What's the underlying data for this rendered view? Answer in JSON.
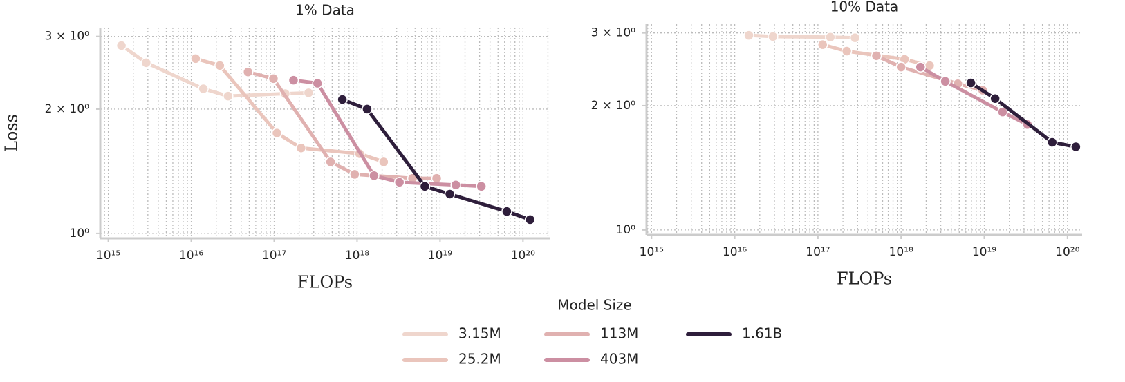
{
  "chart_data": [
    {
      "type": "line",
      "title": "1% Data",
      "xlabel": "FLOPs",
      "ylabel": "Loss",
      "xlog": true,
      "ylog": true,
      "grid": true,
      "minor_grid": true,
      "xlim": [
        800000000000000.0,
        2.1e+20
      ],
      "ylim": [
        0.973,
        3.15
      ],
      "xticks": [
        {
          "value": 1000000000000000.0,
          "label": "10¹⁵"
        },
        {
          "value": 1e+16,
          "label": "10¹⁶"
        },
        {
          "value": 1e+17,
          "label": "10¹⁷"
        },
        {
          "value": 1e+18,
          "label": "10¹⁸"
        },
        {
          "value": 1e+19,
          "label": "10¹⁹"
        },
        {
          "value": 1e+20,
          "label": "10²⁰"
        }
      ],
      "yticks": [
        {
          "value": 1,
          "label": "10⁰"
        },
        {
          "value": 2,
          "label": "2 × 10⁰"
        },
        {
          "value": 3,
          "label": "3 × 10⁰"
        }
      ],
      "series": [
        {
          "name": "3.15M",
          "color": "#efd6cd",
          "x": [
            1440000000000000.0,
            2860000000000000.0,
            1.4e+16,
            2.78e+16,
            1.36e+17,
            2.6e+17
          ],
          "values": [
            2.85,
            2.59,
            2.24,
            2.15,
            2.18,
            2.19
          ]
        },
        {
          "name": "25.2M",
          "color": "#eac5bc",
          "x": [
            1.13e+16,
            2.21e+16,
            1.08e+17,
            2.11e+17,
            1.07e+18,
            2.09e+18
          ],
          "values": [
            2.65,
            2.55,
            1.75,
            1.61,
            1.56,
            1.49
          ]
        },
        {
          "name": "113M",
          "color": "#e0b1b0",
          "x": [
            4.84e+16,
            9.8e+16,
            4.79e+17,
            9.35e+17,
            4.66e+18,
            9.1e+18
          ],
          "values": [
            2.46,
            2.37,
            1.49,
            1.39,
            1.36,
            1.36
          ]
        },
        {
          "name": "403M",
          "color": "#cc8fa2",
          "x": [
            1.71e+17,
            3.33e+17,
            1.6e+18,
            3.24e+18,
            1.55e+19,
            3.15e+19
          ],
          "values": [
            2.35,
            2.31,
            1.38,
            1.33,
            1.31,
            1.3
          ]
        },
        {
          "name": "1.61B",
          "color": "#2e1e3b",
          "x": [
            6.64e+17,
            1.32e+18,
            6.56e+18,
            1.31e+19,
            6.38e+19,
            1.22e+20
          ],
          "values": [
            2.11,
            2.0,
            1.3,
            1.245,
            1.13,
            1.08
          ]
        }
      ]
    },
    {
      "type": "line",
      "title": "10% Data",
      "xlabel": "FLOPs",
      "xlog": true,
      "ylog": true,
      "grid": true,
      "minor_grid": true,
      "xlim": [
        870000000000000.0,
        1.5e+20
      ],
      "ylim": [
        0.973,
        3.15
      ],
      "xticks": [
        {
          "value": 1000000000000000.0,
          "label": "10¹⁵"
        },
        {
          "value": 1e+16,
          "label": "10¹⁶"
        },
        {
          "value": 1e+17,
          "label": "10¹⁷"
        },
        {
          "value": 1e+18,
          "label": "10¹⁸"
        },
        {
          "value": 1e+19,
          "label": "10¹⁹"
        },
        {
          "value": 1e+20,
          "label": "10²⁰"
        }
      ],
      "yticks": [
        {
          "value": 1,
          "label": "10⁰"
        },
        {
          "value": 2,
          "label": "2 × 10⁰"
        },
        {
          "value": 3,
          "label": "3 × 10⁰"
        }
      ],
      "series": [
        {
          "name": "3.15M",
          "color": "#efd6cd",
          "x": [
            1.48e+16,
            2.88e+16,
            1.41e+17,
            2.79e+17
          ],
          "values": [
            2.96,
            2.94,
            2.93,
            2.92
          ]
        },
        {
          "name": "25.2M",
          "color": "#eac5bc",
          "x": [
            1.14e+17,
            2.22e+17,
            1.1e+18,
            2.2e+18
          ],
          "values": [
            2.81,
            2.71,
            2.59,
            2.5
          ]
        },
        {
          "name": "113M",
          "color": "#e0b1b0",
          "x": [
            5.05e+17,
            1e+18,
            4.81e+18,
            9.55e+18
          ],
          "values": [
            2.64,
            2.48,
            2.26,
            2.18
          ]
        },
        {
          "name": "403M",
          "color": "#cc8fa2",
          "x": [
            1.71e+18,
            3.4e+18,
            1.66e+19,
            3.3e+19
          ],
          "values": [
            2.48,
            2.29,
            1.93,
            1.8
          ]
        },
        {
          "name": "1.61B",
          "color": "#2e1e3b",
          "x": [
            6.9e+18,
            1.35e+19,
            6.56e+19,
            1.26e+20
          ],
          "values": [
            2.27,
            2.08,
            1.63,
            1.59
          ]
        }
      ]
    }
  ],
  "legend": {
    "title": "Model Size"
  }
}
